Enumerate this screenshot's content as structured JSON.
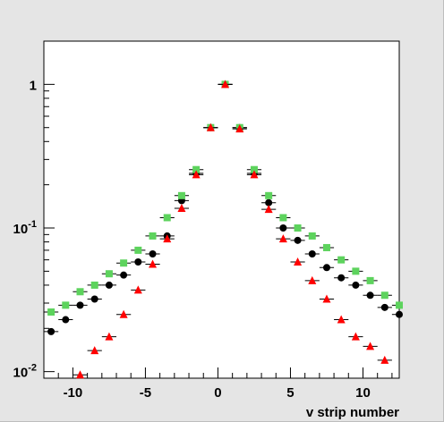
{
  "chart_data": {
    "type": "scatter",
    "title": "",
    "xlabel": "v strip number",
    "ylabel": "",
    "xlim": [
      -12,
      12.5
    ],
    "ylim": [
      0.009,
      2.0
    ],
    "y_scale": "log",
    "x_ticks": [
      -10,
      -5,
      0,
      5,
      10
    ],
    "x_tick_labels": [
      "-10",
      "-5",
      "0",
      "5",
      "10"
    ],
    "y_ticks": [
      0.01,
      0.1,
      1
    ],
    "y_tick_labels": [
      "10-2",
      "10-1",
      "1"
    ],
    "grid": false,
    "legend": "none",
    "x_error": 0.5,
    "series": [
      {
        "marker": "circle",
        "color": "#000000",
        "x": [
          -11.5,
          -10.5,
          -9.5,
          -8.5,
          -7.5,
          -6.5,
          -5.5,
          -4.5,
          -3.5,
          -2.5,
          -1.5,
          -0.5,
          0.5,
          1.5,
          2.5,
          3.5,
          4.5,
          5.5,
          6.5,
          7.5,
          8.5,
          9.5,
          10.5,
          11.5,
          12.5
        ],
        "y": [
          0.019,
          0.023,
          0.029,
          0.032,
          0.04,
          0.047,
          0.058,
          0.066,
          0.088,
          0.155,
          0.24,
          0.5,
          1.0,
          0.5,
          0.24,
          0.15,
          0.1,
          0.082,
          0.066,
          0.053,
          0.045,
          0.04,
          0.034,
          0.028,
          0.025
        ]
      },
      {
        "marker": "square",
        "color": "#5dd35d",
        "x": [
          -11.5,
          -10.5,
          -9.5,
          -8.5,
          -7.5,
          -6.5,
          -5.5,
          -4.5,
          -3.5,
          -2.5,
          -1.5,
          -0.5,
          0.5,
          1.5,
          2.5,
          3.5,
          4.5,
          5.5,
          6.5,
          7.5,
          8.5,
          9.5,
          10.5,
          11.5,
          12.5
        ],
        "y": [
          0.026,
          0.029,
          0.036,
          0.04,
          0.048,
          0.057,
          0.07,
          0.088,
          0.118,
          0.168,
          0.255,
          0.5,
          1.0,
          0.5,
          0.255,
          0.168,
          0.118,
          0.1,
          0.088,
          0.073,
          0.06,
          0.05,
          0.043,
          0.034,
          0.029
        ]
      },
      {
        "marker": "triangle",
        "color": "#ff0000",
        "x": [
          -9.5,
          -8.5,
          -7.5,
          -6.5,
          -5.5,
          -4.5,
          -3.5,
          -2.5,
          -1.5,
          -0.5,
          0.5,
          1.5,
          2.5,
          3.5,
          4.5,
          5.5,
          6.5,
          7.5,
          8.5,
          9.5,
          10.5,
          11.5
        ],
        "y": [
          0.0095,
          0.014,
          0.0175,
          0.025,
          0.037,
          0.056,
          0.084,
          0.137,
          0.235,
          0.5,
          1.0,
          0.49,
          0.235,
          0.135,
          0.084,
          0.058,
          0.043,
          0.032,
          0.023,
          0.0175,
          0.015,
          0.012
        ]
      }
    ]
  }
}
